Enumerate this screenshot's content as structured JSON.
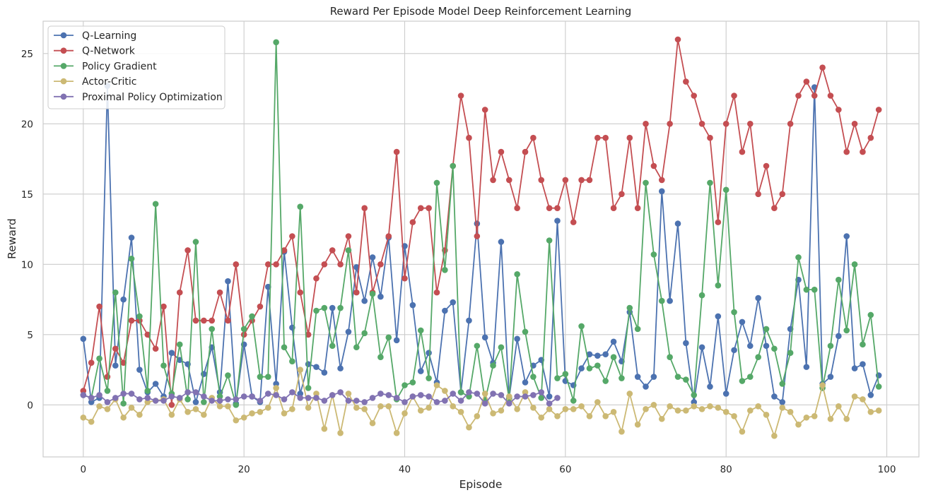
{
  "chart_data": {
    "type": "line",
    "title": "Reward Per Episode Model Deep Reinforcement Learning",
    "xlabel": "Episode",
    "ylabel": "Reward",
    "xlim": [
      -5,
      104
    ],
    "ylim": [
      -3.7,
      27.3
    ],
    "xticks": [
      0,
      20,
      40,
      60,
      80,
      100
    ],
    "yticks": [
      0,
      5,
      10,
      15,
      20,
      25
    ],
    "grid": true,
    "legend_position": "top-left",
    "series": [
      {
        "name": "Q-Learning",
        "color": "#4c72b0",
        "values": [
          4.7,
          0.2,
          0.5,
          22.7,
          2.8,
          7.5,
          11.9,
          2.5,
          0.9,
          1.5,
          0.6,
          3.7,
          3.2,
          2.9,
          0.2,
          2.2,
          4.1,
          0.9,
          8.8,
          0.1,
          4.3,
          0.6,
          0.2,
          8.4,
          1.5,
          10.9,
          5.5,
          0.8,
          2.9,
          2.7,
          2.3,
          6.9,
          2.6,
          5.2,
          9.8,
          7.4,
          10.5,
          7.7,
          11.9,
          4.6,
          11.3,
          7.1,
          2.4,
          3.7,
          1.6,
          6.7,
          7.3,
          0.9,
          6.0,
          12.9,
          4.8,
          3.0,
          11.6,
          0.5,
          4.7,
          1.6,
          2.8,
          3.2,
          0.6,
          13.1,
          1.7,
          1.4,
          2.6,
          3.6,
          3.5,
          3.6,
          4.5,
          3.1,
          6.6,
          2.0,
          1.3,
          2.0,
          15.2,
          7.4,
          12.9,
          4.4,
          0.2,
          4.1,
          1.3,
          6.3,
          0.8,
          3.9,
          5.9,
          4.2,
          7.6,
          4.2,
          0.6,
          0.2,
          5.4,
          8.9,
          2.7,
          22.6,
          1.5,
          2.0,
          4.9,
          12.0,
          2.6,
          2.9,
          0.7,
          2.1
        ]
      },
      {
        "name": "Q-Network",
        "color": "#c44e52",
        "values": [
          1,
          3,
          7,
          2,
          4,
          3,
          6,
          6,
          5,
          4,
          7,
          0,
          8,
          11,
          6,
          6,
          6,
          8,
          6,
          10,
          5,
          6,
          7,
          10,
          10,
          11,
          12,
          8,
          5,
          9,
          10,
          11,
          10,
          12,
          8,
          14,
          8,
          10,
          12,
          18,
          9,
          13,
          14,
          14,
          8,
          11,
          17,
          22,
          19,
          12,
          21,
          16,
          18,
          16,
          14,
          18,
          19,
          16,
          14,
          14,
          16,
          13,
          16,
          16,
          19,
          19,
          14,
          15,
          19,
          14,
          20,
          17,
          16,
          20,
          26,
          23,
          22,
          20,
          19,
          13,
          20,
          22,
          18,
          20,
          15,
          17,
          14,
          15,
          20,
          22,
          23,
          22,
          24,
          22,
          21,
          18,
          20,
          18,
          19,
          21
        ]
      },
      {
        "name": "Policy Gradient",
        "color": "#55a868",
        "values": [
          0.7,
          0.5,
          3.3,
          1.0,
          8.0,
          0.1,
          10.4,
          6.3,
          1.0,
          14.3,
          2.8,
          0.8,
          4.3,
          0.4,
          11.6,
          0.2,
          5.4,
          0.6,
          2.1,
          0.0,
          5.4,
          6.3,
          2.0,
          2.0,
          25.8,
          4.1,
          3.1,
          14.1,
          1.2,
          6.7,
          6.9,
          4.2,
          6.9,
          11.0,
          4.1,
          5.1,
          7.9,
          3.4,
          4.8,
          0.4,
          1.4,
          1.6,
          5.3,
          1.9,
          15.8,
          9.6,
          17.0,
          0.9,
          0.6,
          4.2,
          0.3,
          2.8,
          4.1,
          0.4,
          9.3,
          5.2,
          2.0,
          0.5,
          11.7,
          1.9,
          2.2,
          0.3,
          5.6,
          2.6,
          2.8,
          1.7,
          3.4,
          1.9,
          6.9,
          5.4,
          15.8,
          10.7,
          7.4,
          3.4,
          2.0,
          1.8,
          0.7,
          7.8,
          15.8,
          8.5,
          15.3,
          6.6,
          1.7,
          2.0,
          3.4,
          5.4,
          4.0,
          1.5,
          3.7,
          10.5,
          8.2,
          8.2,
          1.2,
          4.2,
          8.9,
          5.3,
          10.0,
          4.3,
          6.4,
          1.3
        ]
      },
      {
        "name": "Actor-Critic",
        "color": "#ccb974",
        "values": [
          -0.9,
          -1.2,
          -0.1,
          -0.3,
          0.4,
          -0.9,
          -0.2,
          -0.7,
          0.2,
          0.3,
          0.4,
          -0.7,
          0.4,
          -0.5,
          -0.3,
          -0.7,
          0.5,
          -0.1,
          -0.1,
          -1.1,
          -0.9,
          -0.6,
          -0.5,
          -0.2,
          1.2,
          -0.6,
          -0.3,
          2.5,
          -0.2,
          0.8,
          -1.7,
          0.7,
          -2.0,
          0.8,
          -0.2,
          -0.3,
          -1.3,
          -0.1,
          -0.1,
          -2.0,
          -0.6,
          0.6,
          -0.4,
          -0.2,
          1.4,
          1.0,
          -0.1,
          -0.5,
          -1.6,
          -0.8,
          0.8,
          -0.6,
          -0.4,
          0.6,
          -0.3,
          0.9,
          -0.2,
          -0.9,
          -0.3,
          -0.8,
          -0.3,
          -0.3,
          -0.1,
          -0.8,
          0.2,
          -0.8,
          -0.5,
          -1.9,
          0.8,
          -1.4,
          -0.3,
          0.0,
          -1.0,
          -0.1,
          -0.4,
          -0.4,
          -0.1,
          -0.3,
          -0.1,
          -0.2,
          -0.5,
          -0.8,
          -1.9,
          -0.4,
          -0.1,
          -0.7,
          -2.2,
          -0.2,
          -0.5,
          -1.4,
          -0.9,
          -0.8,
          1.4,
          -1.0,
          -0.1,
          -1.0,
          0.6,
          0.4,
          -0.5,
          -0.4
        ]
      },
      {
        "name": "Proximal Policy Optimization",
        "color": "#8172b2",
        "values": [
          0.7,
          0.5,
          0.7,
          0.2,
          0.5,
          0.8,
          0.8,
          0.4,
          0.5,
          0.3,
          0.3,
          0.6,
          0.5,
          0.9,
          0.9,
          0.6,
          0.3,
          0.3,
          0.4,
          0.4,
          0.6,
          0.6,
          0.3,
          0.8,
          0.7,
          0.4,
          0.9,
          0.5,
          0.5,
          0.5,
          0.3,
          0.7,
          0.9,
          0.3,
          0.3,
          0.2,
          0.5,
          0.8,
          0.7,
          0.5,
          0.2,
          0.6,
          0.7,
          0.6,
          0.2,
          0.3,
          0.8,
          0.3,
          0.9,
          0.8,
          0.1,
          0.8,
          0.7,
          0.1,
          0.6,
          0.6,
          0.7,
          0.9,
          0.1,
          0.5
        ]
      }
    ]
  }
}
